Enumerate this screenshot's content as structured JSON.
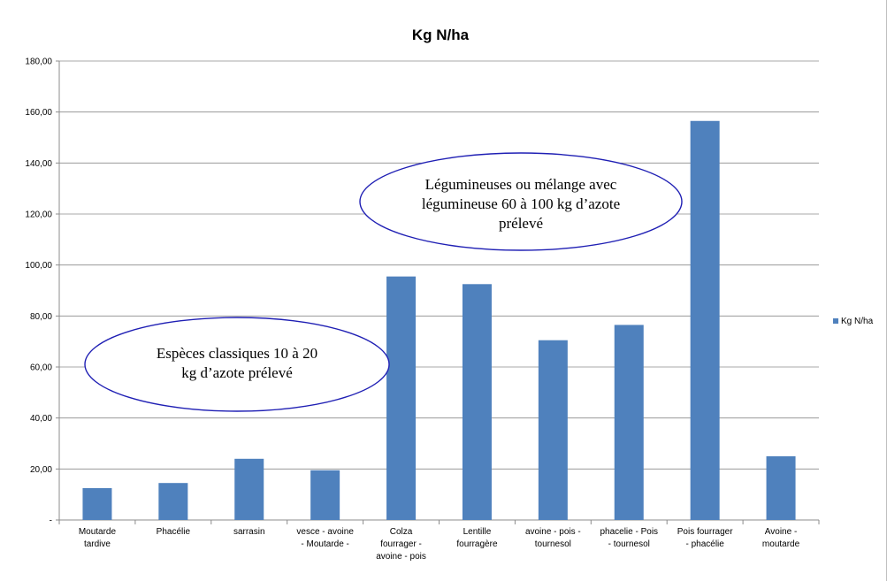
{
  "chart_data": {
    "type": "bar",
    "title": "Kg N/ha",
    "xlabel": "",
    "ylabel": "",
    "ylim": [
      0,
      180
    ],
    "y_ticks": [
      "-",
      "20,00",
      "40,00",
      "60,00",
      "80,00",
      "100,00",
      "120,00",
      "140,00",
      "160,00",
      "180,00"
    ],
    "grid": true,
    "legend_position": "right",
    "categories": [
      [
        "Moutarde",
        "tardive"
      ],
      [
        "Phacélie"
      ],
      [
        "sarrasin"
      ],
      [
        "vesce - avoine",
        "- Moutarde -"
      ],
      [
        "Colza",
        "fourrager -",
        "avoine - pois"
      ],
      [
        "Lentille",
        "fourragère"
      ],
      [
        "avoine - pois -",
        "tournesol"
      ],
      [
        "phacelie - Pois",
        "- tournesol"
      ],
      [
        "Pois fourrager",
        "- phacélie"
      ],
      [
        "Avoine -",
        "moutarde"
      ]
    ],
    "series": [
      {
        "name": "Kg N/ha",
        "color": "#4f81bd",
        "values": [
          12.5,
          14.5,
          24,
          19.5,
          95.5,
          92.5,
          70.5,
          76.5,
          156.5,
          25
        ]
      }
    ],
    "annotations": [
      {
        "lines": [
          "Espèces classiques 10 à 20",
          "kg d’azote prélevé"
        ],
        "color": "#1f1fb4"
      },
      {
        "lines": [
          "Légumineuses ou mélange avec",
          "légumineuse 60 à 100 kg d’azote",
          "prélevé"
        ],
        "color": "#1f1fb4"
      }
    ]
  }
}
